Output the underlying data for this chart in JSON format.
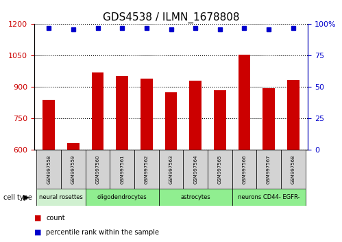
{
  "title": "GDS4538 / ILMN_1678808",
  "samples": [
    "GSM997558",
    "GSM997559",
    "GSM997560",
    "GSM997561",
    "GSM997562",
    "GSM997563",
    "GSM997564",
    "GSM997565",
    "GSM997566",
    "GSM997567",
    "GSM997568"
  ],
  "counts": [
    840,
    635,
    970,
    955,
    940,
    875,
    930,
    885,
    1055,
    895,
    935
  ],
  "percentiles": [
    97,
    96,
    97,
    97,
    97,
    96,
    97,
    96,
    97,
    96,
    97
  ],
  "cell_types": [
    {
      "label": "neural rosettes",
      "start": 0,
      "end": 2,
      "color": "#d0f0d0"
    },
    {
      "label": "oligodendrocytes",
      "start": 2,
      "end": 5,
      "color": "#90ee90"
    },
    {
      "label": "astrocytes",
      "start": 5,
      "end": 8,
      "color": "#90ee90"
    },
    {
      "label": "neurons CD44- EGFR-",
      "start": 8,
      "end": 11,
      "color": "#90ee90"
    }
  ],
  "ylim_left": [
    600,
    1200
  ],
  "ylim_right": [
    0,
    100
  ],
  "yticks_left": [
    600,
    750,
    900,
    1050,
    1200
  ],
  "yticks_right": [
    0,
    25,
    50,
    75,
    100
  ],
  "bar_color": "#cc0000",
  "dot_color": "#0000cc",
  "bar_width": 0.5,
  "bar_bottom": 600,
  "legend_count_color": "#cc0000",
  "legend_pct_color": "#0000cc",
  "sample_box_color": "#d3d3d3"
}
